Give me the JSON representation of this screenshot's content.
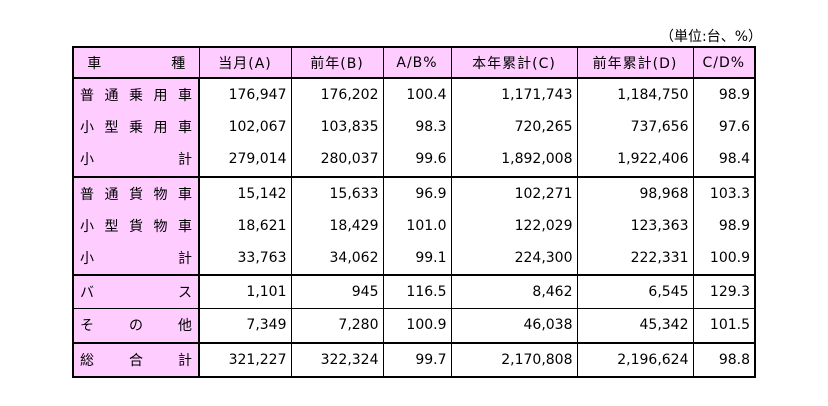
{
  "unit_note": "（単位:台、%）",
  "headers": {
    "kind": "車　　　　　種",
    "current": "当月(A)",
    "previous": "前年(B)",
    "ratio_ab": "A/B%",
    "ytd": "本年累計(C)",
    "prev_ytd": "前年累計(D)",
    "ratio_cd": "C/D%"
  },
  "rows": [
    {
      "name": "普通乗用車",
      "current": "176,947",
      "previous": "176,202",
      "ratio_ab": "100.4",
      "ytd": "1,171,743",
      "prev_ytd": "1,184,750",
      "ratio_cd": "98.9"
    },
    {
      "name": "小型乗用車",
      "current": "102,067",
      "previous": "103,835",
      "ratio_ab": "98.3",
      "ytd": "720,265",
      "prev_ytd": "737,656",
      "ratio_cd": "97.6"
    },
    {
      "name": "小計",
      "current": "279,014",
      "previous": "280,037",
      "ratio_ab": "99.6",
      "ytd": "1,892,008",
      "prev_ytd": "1,922,406",
      "ratio_cd": "98.4"
    },
    {
      "name": "普通貨物車",
      "current": "15,142",
      "previous": "15,633",
      "ratio_ab": "96.9",
      "ytd": "102,271",
      "prev_ytd": "98,968",
      "ratio_cd": "103.3"
    },
    {
      "name": "小型貨物車",
      "current": "18,621",
      "previous": "18,429",
      "ratio_ab": "101.0",
      "ytd": "122,029",
      "prev_ytd": "123,363",
      "ratio_cd": "98.9"
    },
    {
      "name": "小計",
      "current": "33,763",
      "previous": "34,062",
      "ratio_ab": "99.1",
      "ytd": "224,300",
      "prev_ytd": "222,331",
      "ratio_cd": "100.9"
    },
    {
      "name": "バス",
      "current": "1,101",
      "previous": "945",
      "ratio_ab": "116.5",
      "ytd": "8,462",
      "prev_ytd": "6,545",
      "ratio_cd": "129.3"
    },
    {
      "name": "その他",
      "current": "7,349",
      "previous": "7,280",
      "ratio_ab": "100.9",
      "ytd": "46,038",
      "prev_ytd": "45,342",
      "ratio_cd": "101.5"
    },
    {
      "name": "総合計",
      "current": "321,227",
      "previous": "322,324",
      "ratio_ab": "99.7",
      "ytd": "2,170,808",
      "prev_ytd": "2,196,624",
      "ratio_cd": "98.8"
    }
  ],
  "colors": {
    "header_bg": "#ffccff",
    "border": "#000000"
  }
}
